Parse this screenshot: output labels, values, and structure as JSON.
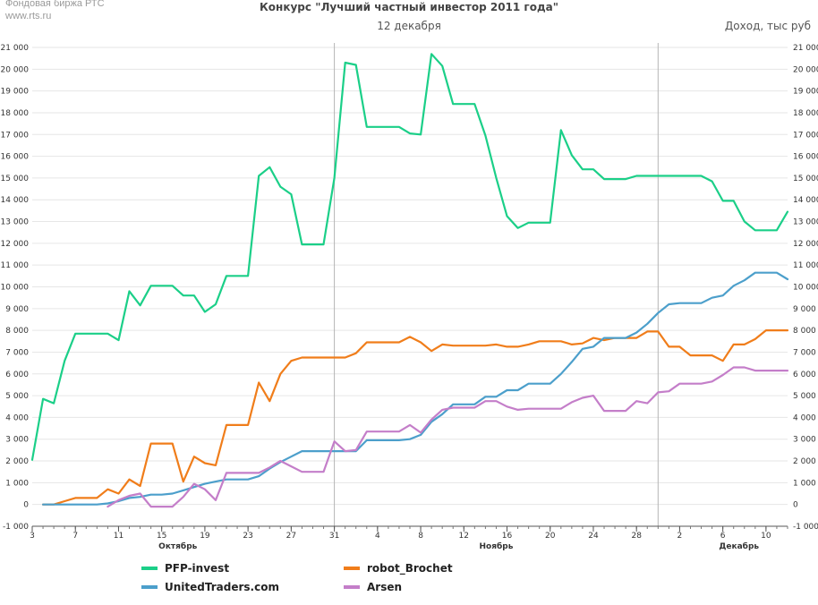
{
  "header": {
    "source_line1": "Фондовая биржа РТС",
    "source_line2": "www.rts.ru",
    "title": "Конкурс \"Лучший частный инвестор 2011 года\"",
    "subtitle": "12 декабря",
    "unit": "Доход, тыс руб"
  },
  "chart_data": {
    "type": "line",
    "title": "Конкурс \"Лучший частный инвестор 2011 года\"",
    "subtitle": "12 декабря",
    "ylabel": "Доход, тыс руб",
    "ylim": [
      -1000,
      21000
    ],
    "yticks": [
      -1000,
      0,
      1000,
      2000,
      3000,
      4000,
      5000,
      6000,
      7000,
      8000,
      9000,
      10000,
      11000,
      12000,
      13000,
      14000,
      15000,
      16000,
      17000,
      18000,
      19000,
      20000,
      21000
    ],
    "ytick_labels": [
      "-1 000",
      "0",
      "1 000",
      "2 000",
      "3 000",
      "4 000",
      "5 000",
      "6 000",
      "7 000",
      "8 000",
      "9 000",
      "10 000",
      "11 000",
      "12 000",
      "13 000",
      "14 000",
      "15 000",
      "16 000",
      "17 000",
      "18 000",
      "19 000",
      "20 000",
      "21 000"
    ],
    "xlim": [
      0,
      70
    ],
    "xticks": [
      0,
      4,
      8,
      12,
      16,
      20,
      24,
      28,
      32,
      36,
      40,
      44,
      48,
      52,
      56,
      60,
      64,
      68
    ],
    "xtick_labels": [
      "3",
      "7",
      "11",
      "15",
      "19",
      "23",
      "27",
      "31",
      "4",
      "8",
      "12",
      "16",
      "20",
      "24",
      "28",
      "2",
      "6",
      "10"
    ],
    "months": [
      {
        "label": "Октябрь",
        "x": 13.5
      },
      {
        "label": "Ноябрь",
        "x": 43
      },
      {
        "label": "Декабрь",
        "x": 65.5
      }
    ],
    "month_boundaries": [
      28,
      58
    ],
    "series": [
      {
        "name": "PFP-invest",
        "color": "#1bcf88",
        "x": [
          0,
          1,
          2,
          3,
          4,
          5,
          6,
          7,
          8,
          9,
          10,
          11,
          12,
          13,
          14,
          15,
          16,
          17,
          18,
          19,
          20,
          21,
          22,
          23,
          24,
          25,
          26,
          27,
          28,
          29,
          30,
          31,
          32,
          33,
          34,
          35,
          36,
          37,
          38,
          39,
          40,
          41,
          42,
          43,
          44,
          45,
          46,
          47,
          48,
          49,
          50,
          51,
          52,
          53,
          54,
          55,
          56,
          57,
          58,
          59,
          60,
          61,
          62,
          63,
          64,
          65,
          66,
          67,
          68,
          69,
          70
        ],
        "values": [
          2050,
          4850,
          4650,
          6600,
          7850,
          7850,
          7850,
          7850,
          7550,
          9800,
          9150,
          10050,
          10050,
          10050,
          9600,
          9600,
          8850,
          9200,
          10500,
          10500,
          10500,
          15100,
          15500,
          14600,
          14250,
          11950,
          11950,
          11950,
          15000,
          20300,
          20200,
          17350,
          17350,
          17350,
          17350,
          17050,
          17000,
          20700,
          20150,
          18400,
          18400,
          18400,
          16950,
          15000,
          13250,
          12700,
          12950,
          12950,
          12950,
          17200,
          16050,
          15400,
          15400,
          14950,
          14950,
          14950,
          15100,
          15100,
          15100,
          15100,
          15100,
          15100,
          15100,
          14850,
          13950,
          13950,
          13000,
          12600,
          12600,
          12600,
          13450
        ]
      },
      {
        "name": "robot_Brochet",
        "color": "#f07d1a",
        "x": [
          1,
          2,
          3,
          4,
          5,
          6,
          7,
          8,
          9,
          10,
          11,
          12,
          13,
          14,
          15,
          16,
          17,
          18,
          19,
          20,
          21,
          22,
          23,
          24,
          25,
          26,
          27,
          28,
          29,
          30,
          31,
          32,
          33,
          34,
          35,
          36,
          37,
          38,
          39,
          40,
          41,
          42,
          43,
          44,
          45,
          46,
          47,
          48,
          49,
          50,
          51,
          52,
          53,
          54,
          55,
          56,
          57,
          58,
          59,
          60,
          61,
          62,
          63,
          64,
          65,
          66,
          67,
          68,
          69,
          70
        ],
        "values": [
          0,
          0,
          150,
          300,
          300,
          300,
          700,
          500,
          1150,
          850,
          2800,
          2800,
          2800,
          1050,
          2200,
          1900,
          1800,
          3650,
          3650,
          3650,
          5600,
          4750,
          6000,
          6600,
          6750,
          6750,
          6750,
          6750,
          6750,
          6950,
          7450,
          7450,
          7450,
          7450,
          7700,
          7450,
          7050,
          7350,
          7300,
          7300,
          7300,
          7300,
          7350,
          7250,
          7250,
          7350,
          7500,
          7500,
          7500,
          7350,
          7400,
          7650,
          7550,
          7650,
          7650,
          7650,
          7950,
          7950,
          7250,
          7250,
          6850,
          6850,
          6850,
          6600,
          7350,
          7350,
          7600,
          8000,
          8000,
          8000
        ]
      },
      {
        "name": "UnitedTraders.com",
        "color": "#4c9fcb",
        "x": [
          1,
          2,
          3,
          4,
          5,
          6,
          7,
          8,
          9,
          10,
          11,
          12,
          13,
          14,
          15,
          16,
          17,
          18,
          19,
          20,
          21,
          22,
          23,
          24,
          25,
          26,
          27,
          28,
          29,
          30,
          31,
          32,
          33,
          34,
          35,
          36,
          37,
          38,
          39,
          40,
          41,
          42,
          43,
          44,
          45,
          46,
          47,
          48,
          49,
          50,
          51,
          52,
          53,
          54,
          55,
          56,
          57,
          58,
          59,
          60,
          61,
          62,
          63,
          64,
          65,
          66,
          67,
          68,
          69,
          70
        ],
        "values": [
          0,
          0,
          0,
          0,
          0,
          0,
          50,
          150,
          300,
          350,
          450,
          450,
          500,
          650,
          800,
          950,
          1050,
          1150,
          1150,
          1150,
          1300,
          1650,
          1950,
          2200,
          2450,
          2450,
          2450,
          2450,
          2450,
          2450,
          2950,
          2950,
          2950,
          2950,
          3000,
          3200,
          3800,
          4150,
          4600,
          4600,
          4600,
          4950,
          4950,
          5250,
          5250,
          5550,
          5550,
          5550,
          6000,
          6550,
          7150,
          7250,
          7650,
          7650,
          7650,
          7900,
          8300,
          8800,
          9200,
          9250,
          9250,
          9250,
          9500,
          9600,
          10050,
          10300,
          10650,
          10650,
          10650,
          10350
        ]
      },
      {
        "name": "Arsen",
        "color": "#c47ec9",
        "x": [
          7,
          8,
          9,
          10,
          11,
          12,
          13,
          14,
          15,
          16,
          17,
          18,
          19,
          20,
          21,
          22,
          23,
          24,
          25,
          26,
          27,
          28,
          29,
          30,
          31,
          32,
          33,
          34,
          35,
          36,
          37,
          38,
          39,
          40,
          41,
          42,
          43,
          44,
          45,
          46,
          47,
          48,
          49,
          50,
          51,
          52,
          53,
          54,
          55,
          56,
          57,
          58,
          59,
          60,
          61,
          62,
          63,
          64,
          65,
          66,
          67,
          68,
          69,
          70
        ],
        "values": [
          -100,
          200,
          400,
          500,
          -100,
          -100,
          -100,
          350,
          950,
          700,
          200,
          1450,
          1450,
          1450,
          1450,
          1700,
          2000,
          1750,
          1500,
          1500,
          1500,
          2900,
          2450,
          2500,
          3350,
          3350,
          3350,
          3350,
          3650,
          3300,
          3900,
          4350,
          4450,
          4450,
          4450,
          4750,
          4750,
          4500,
          4350,
          4400,
          4400,
          4400,
          4400,
          4700,
          4900,
          5000,
          4300,
          4300,
          4300,
          4750,
          4650,
          5150,
          5200,
          5550,
          5550,
          5550,
          5650,
          5950,
          6300,
          6300,
          6150,
          6150,
          6150,
          6150
        ]
      }
    ]
  }
}
